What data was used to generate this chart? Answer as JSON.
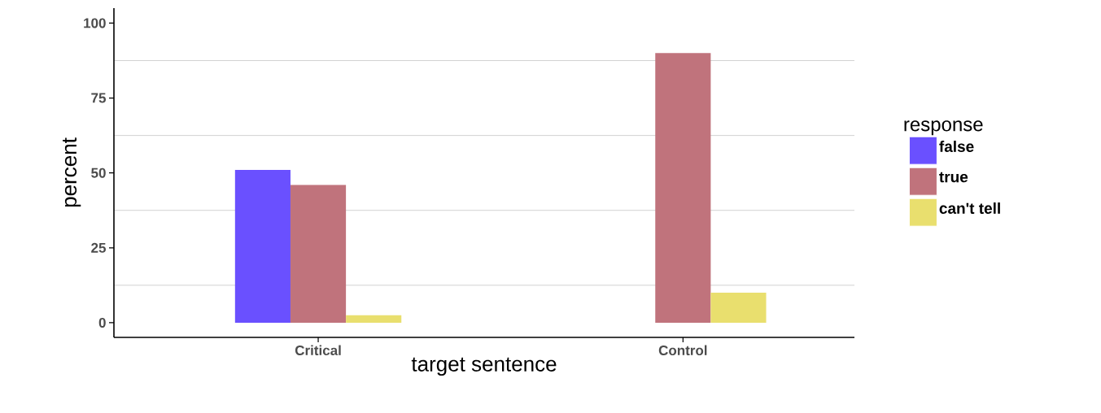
{
  "chart_data": {
    "type": "bar",
    "xlabel": "target sentence",
    "ylabel": "percent",
    "legend_title": "response",
    "categories": [
      "Critical",
      "Control"
    ],
    "series": [
      {
        "name": "false",
        "color": "#6a50ff",
        "values": [
          51,
          0
        ]
      },
      {
        "name": "true",
        "color": "#c0737c",
        "values": [
          46,
          90
        ]
      },
      {
        "name": "can't tell",
        "color": "#e9df6e",
        "values": [
          2.5,
          10
        ]
      }
    ],
    "ylim": [
      -4.9,
      105
    ],
    "yticks": [
      0,
      {
        "value": 12.5,
        "label": null
      },
      25,
      {
        "value": 37.5,
        "label": null
      },
      50,
      {
        "value": 62.5,
        "label": null
      },
      75,
      {
        "value": 87.5,
        "label": null
      },
      100
    ],
    "grid": "y",
    "legend": "right"
  }
}
